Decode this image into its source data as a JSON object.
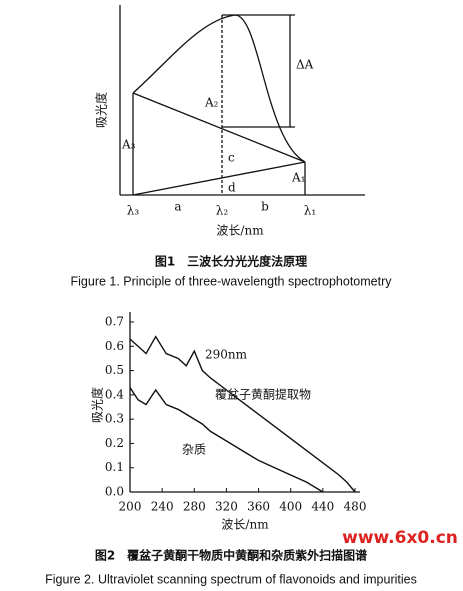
{
  "figure1": {
    "y_label": "吸光度",
    "x_label": "波长/nm",
    "lambda3": "λ₃",
    "lambda2": "λ₂",
    "lambda1": "λ₁",
    "a": "a",
    "b": "b",
    "A3": "A₃",
    "A2": "A₂",
    "A1": "A₁",
    "c": "c",
    "d": "d",
    "delta": "ΔA",
    "caption_zh": "图1　三波长分光光度法原理",
    "caption_en": "Figure 1. Principle of three-wavelength spectrophotometry"
  },
  "chart_data": {
    "type": "line",
    "caption_zh": "图2　覆盆子黄酮干物质中黄酮和杂质紫外扫描图谱",
    "caption_en": "Figure 2. Ultraviolet scanning spectrum of flavonoids and impurities",
    "y_label": "吸光度",
    "x_label": "波长/nm",
    "annotation": "290nm",
    "x": [
      200,
      210,
      220,
      232,
      245,
      260,
      270,
      280,
      290,
      300,
      320,
      340,
      360,
      380,
      400,
      420,
      440,
      460,
      470,
      480
    ],
    "series": [
      {
        "name": "覆盆子黄酮提取物",
        "color": "#111111",
        "values": [
          0.63,
          0.6,
          0.57,
          0.64,
          0.57,
          0.55,
          0.52,
          0.58,
          0.5,
          0.47,
          0.42,
          0.37,
          0.32,
          0.27,
          0.22,
          0.17,
          0.12,
          0.07,
          0.04,
          0.0
        ]
      },
      {
        "name": "杂质",
        "color": "#111111",
        "values": [
          0.43,
          0.38,
          0.36,
          0.42,
          0.36,
          0.34,
          0.32,
          0.3,
          0.28,
          0.25,
          0.21,
          0.17,
          0.13,
          0.1,
          0.07,
          0.04,
          0.0,
          null,
          null,
          null
        ]
      }
    ],
    "xlim": [
      200,
      480
    ],
    "xticks": [
      200,
      240,
      280,
      320,
      360,
      400,
      440,
      480
    ],
    "ylim": [
      0,
      0.7
    ],
    "yticks": [
      {
        "value": 0,
        "label": "0.0"
      },
      0.1,
      0.2,
      0.3,
      0.4,
      0.5,
      0.6,
      0.7
    ]
  },
  "watermark": "www.6x0.cn"
}
